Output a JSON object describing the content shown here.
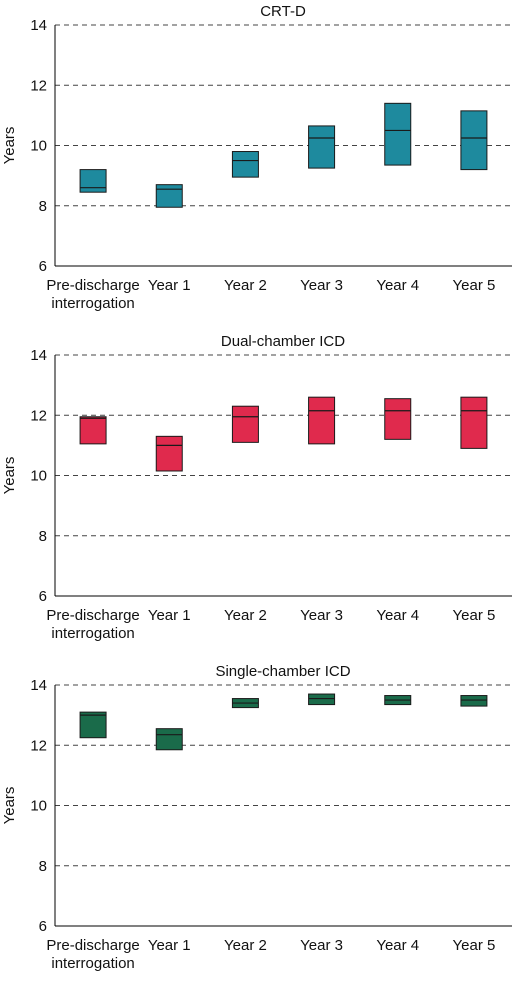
{
  "chart_data": [
    {
      "type": "box",
      "title": "CRT-D",
      "ylabel": "Years",
      "ylim": [
        6,
        14
      ],
      "yticks": [
        6,
        8,
        10,
        12,
        14
      ],
      "categories": [
        "Pre-discharge\ninterrogation",
        "Year 1",
        "Year 2",
        "Year 3",
        "Year 4",
        "Year 5"
      ],
      "color": "#1e8a9e",
      "boxes": [
        {
          "low": 8.45,
          "median": 8.6,
          "high": 9.2
        },
        {
          "low": 7.95,
          "median": 8.55,
          "high": 8.7
        },
        {
          "low": 8.95,
          "median": 9.5,
          "high": 9.8
        },
        {
          "low": 9.25,
          "median": 10.25,
          "high": 10.65
        },
        {
          "low": 9.35,
          "median": 10.5,
          "high": 11.4
        },
        {
          "low": 9.2,
          "median": 10.25,
          "high": 11.15
        }
      ]
    },
    {
      "type": "box",
      "title": "Dual-chamber ICD",
      "ylabel": "Years",
      "ylim": [
        6,
        14
      ],
      "yticks": [
        6,
        8,
        10,
        12,
        14
      ],
      "categories": [
        "Pre-discharge\ninterrogation",
        "Year 1",
        "Year 2",
        "Year 3",
        "Year 4",
        "Year 5"
      ],
      "color": "#e02a4d",
      "boxes": [
        {
          "low": 11.05,
          "median": 11.9,
          "high": 11.95
        },
        {
          "low": 10.15,
          "median": 11.0,
          "high": 11.3
        },
        {
          "low": 11.1,
          "median": 11.95,
          "high": 12.3
        },
        {
          "low": 11.05,
          "median": 12.15,
          "high": 12.6
        },
        {
          "low": 11.2,
          "median": 12.15,
          "high": 12.55
        },
        {
          "low": 10.9,
          "median": 12.15,
          "high": 12.6
        }
      ]
    },
    {
      "type": "box",
      "title": "Single-chamber ICD",
      "ylabel": "Years",
      "ylim": [
        6,
        14
      ],
      "yticks": [
        6,
        8,
        10,
        12,
        14
      ],
      "categories": [
        "Pre-discharge\ninterrogation",
        "Year 1",
        "Year 2",
        "Year 3",
        "Year 4",
        "Year 5"
      ],
      "color": "#1a6b4a",
      "boxes": [
        {
          "low": 12.25,
          "median": 13.0,
          "high": 13.1
        },
        {
          "low": 11.85,
          "median": 12.35,
          "high": 12.55
        },
        {
          "low": 13.25,
          "median": 13.4,
          "high": 13.55
        },
        {
          "low": 13.35,
          "median": 13.55,
          "high": 13.7
        },
        {
          "low": 13.35,
          "median": 13.5,
          "high": 13.65
        },
        {
          "low": 13.3,
          "median": 13.5,
          "high": 13.65
        }
      ]
    }
  ]
}
